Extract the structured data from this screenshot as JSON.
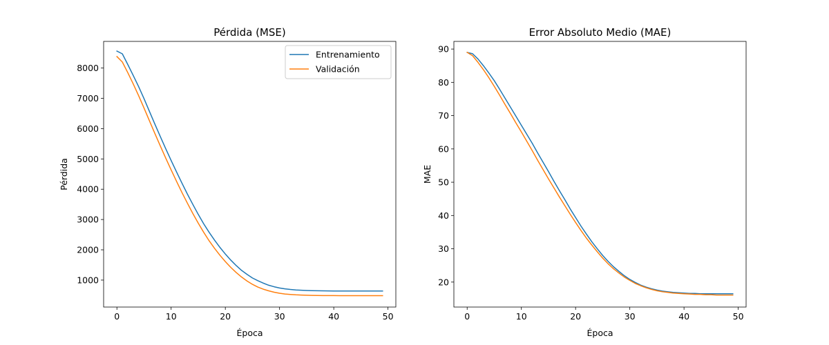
{
  "chart_data": [
    {
      "type": "line",
      "title": "Pérdida (MSE)",
      "xlabel": "Época",
      "ylabel": "Pérdida",
      "xlim": [
        -2.45,
        51.45
      ],
      "ylim": [
        110,
        8880
      ],
      "xticks": [
        0,
        10,
        20,
        30,
        40,
        50
      ],
      "yticks": [
        1000,
        2000,
        3000,
        4000,
        5000,
        6000,
        7000,
        8000
      ],
      "grid": false,
      "legend_position": "top-right",
      "x": [
        0,
        1,
        2,
        3,
        4,
        5,
        6,
        7,
        8,
        9,
        10,
        11,
        12,
        13,
        14,
        15,
        16,
        17,
        18,
        19,
        20,
        21,
        22,
        23,
        24,
        25,
        26,
        27,
        28,
        29,
        30,
        31,
        32,
        33,
        34,
        35,
        36,
        37,
        38,
        39,
        40,
        41,
        42,
        43,
        44,
        45,
        46,
        47,
        48,
        49
      ],
      "series": [
        {
          "name": "Entrenamiento",
          "color": "#1f77b4",
          "values": [
            8560,
            8470,
            8120,
            7760,
            7390,
            6990,
            6570,
            6150,
            5740,
            5340,
            4950,
            4570,
            4200,
            3840,
            3500,
            3170,
            2860,
            2580,
            2320,
            2080,
            1860,
            1660,
            1480,
            1320,
            1190,
            1070,
            980,
            900,
            830,
            780,
            740,
            710,
            690,
            675,
            665,
            657,
            651,
            647,
            644,
            642,
            641,
            640,
            640,
            639,
            639,
            639,
            639,
            639,
            639,
            639
          ]
        },
        {
          "name": "Validación",
          "color": "#ff7f0e",
          "values": [
            8380,
            8200,
            7850,
            7480,
            7090,
            6680,
            6260,
            5840,
            5430,
            5030,
            4640,
            4260,
            3890,
            3540,
            3200,
            2880,
            2580,
            2300,
            2050,
            1820,
            1610,
            1420,
            1250,
            1100,
            970,
            860,
            770,
            700,
            645,
            600,
            565,
            540,
            525,
            513,
            505,
            499,
            495,
            492,
            490,
            489,
            488,
            487,
            487,
            486,
            486,
            486,
            486,
            486,
            486,
            486
          ]
        }
      ]
    },
    {
      "type": "line",
      "title": "Error Absoluto Medio (MAE)",
      "xlabel": "Época",
      "ylabel": "MAE",
      "xlim": [
        -2.45,
        51.45
      ],
      "ylim": [
        12.5,
        92.3
      ],
      "xticks": [
        0,
        10,
        20,
        30,
        40,
        50
      ],
      "yticks": [
        20,
        30,
        40,
        50,
        60,
        70,
        80,
        90
      ],
      "grid": false,
      "x": [
        0,
        1,
        2,
        3,
        4,
        5,
        6,
        7,
        8,
        9,
        10,
        11,
        12,
        13,
        14,
        15,
        16,
        17,
        18,
        19,
        20,
        21,
        22,
        23,
        24,
        25,
        26,
        27,
        28,
        29,
        30,
        31,
        32,
        33,
        34,
        35,
        36,
        37,
        38,
        39,
        40,
        41,
        42,
        43,
        44,
        45,
        46,
        47,
        48,
        49
      ],
      "series": [
        {
          "name": "Entrenamiento",
          "color": "#1f77b4",
          "values": [
            89.0,
            88.6,
            87.0,
            85.0,
            82.8,
            80.5,
            77.9,
            75.2,
            72.5,
            69.8,
            67.1,
            64.4,
            61.7,
            58.8,
            56.0,
            53.2,
            50.3,
            47.5,
            44.8,
            42.0,
            39.4,
            36.8,
            34.4,
            32.1,
            30.0,
            28.0,
            26.2,
            24.6,
            23.2,
            21.9,
            20.8,
            19.9,
            19.1,
            18.5,
            18.0,
            17.6,
            17.3,
            17.1,
            16.9,
            16.8,
            16.7,
            16.6,
            16.6,
            16.5,
            16.5,
            16.5,
            16.5,
            16.5,
            16.5,
            16.5
          ]
        },
        {
          "name": "Validación",
          "color": "#ff7f0e",
          "values": [
            89.0,
            88.0,
            86.0,
            83.8,
            81.4,
            78.8,
            76.1,
            73.3,
            70.6,
            67.8,
            65.1,
            62.3,
            59.5,
            56.6,
            53.8,
            51.0,
            48.3,
            45.6,
            43.0,
            40.4,
            37.9,
            35.5,
            33.2,
            31.1,
            29.1,
            27.2,
            25.5,
            24.0,
            22.7,
            21.5,
            20.5,
            19.6,
            18.9,
            18.3,
            17.8,
            17.4,
            17.1,
            16.9,
            16.7,
            16.6,
            16.5,
            16.4,
            16.3,
            16.3,
            16.2,
            16.2,
            16.1,
            16.1,
            16.1,
            16.1
          ]
        }
      ]
    }
  ]
}
